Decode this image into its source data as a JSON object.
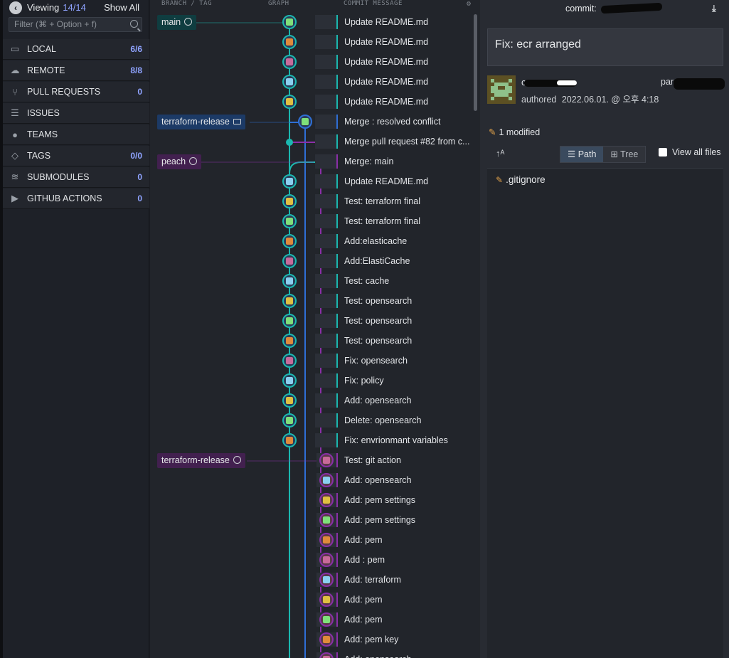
{
  "sidebar": {
    "viewing_label": "Viewing",
    "viewing_count": "14/14",
    "show_all": "Show All",
    "filter_placeholder": "Filter (⌘ + Option + f)",
    "items": [
      {
        "label": "LOCAL",
        "count": "6/6",
        "icon": "laptop-icon"
      },
      {
        "label": "REMOTE",
        "count": "8/8",
        "icon": "cloud-icon"
      },
      {
        "label": "PULL REQUESTS",
        "count": "0",
        "icon": "pull-request-icon"
      },
      {
        "label": "ISSUES",
        "count": "",
        "icon": "list-icon"
      },
      {
        "label": "TEAMS",
        "count": "",
        "icon": "team-icon"
      },
      {
        "label": "TAGS",
        "count": "0/0",
        "icon": "tag-icon"
      },
      {
        "label": "SUBMODULES",
        "count": "0",
        "icon": "layers-icon"
      },
      {
        "label": "GITHUB ACTIONS",
        "count": "0",
        "icon": "play-circle-icon"
      }
    ]
  },
  "graph": {
    "headers": {
      "branch": "BRANCH / TAG",
      "graph": "GRAPH",
      "message": "COMMIT MESSAGE"
    },
    "refs": {
      "main": "main",
      "terraform_release_local": "terraform-release",
      "peach": "peach",
      "terraform_release_remote": "terraform-release"
    },
    "commits": [
      "Update README.md",
      "Update README.md",
      "Update README.md",
      "Update README.md",
      "Update README.md",
      "Merge : resolved conflict",
      "Merge pull request #82 from c...",
      "Merge: main",
      "Update README.md",
      "Test: terraform final",
      "Test: terraform final",
      "Add:elasticache",
      "Add:ElastiCache",
      "Test: cache",
      "Test: opensearch",
      "Test: opensearch",
      "Test: opensearch",
      "Fix: opensearch",
      "Fix: policy",
      "Add: opensearch",
      "Delete: opensearch",
      "Fix: envrionmant variables",
      "Test: git action",
      "Add: opensearch",
      "Add: pem settings",
      "Add: pem settings",
      "Add: pem",
      "Add : pem",
      "Add: terraform",
      "Add: pem",
      "Add: pem",
      "Add: pem key",
      "Add: opensearch"
    ]
  },
  "detail": {
    "commit_label": "commit:",
    "summary": "Fix: ecr arranged",
    "author_name": "crows",
    "parent_label": "parent:",
    "authored_label": "authored",
    "authored_date": "2022.06.01. @ 오후 4:18",
    "modified_text": "1 modified",
    "path_label": "Path",
    "tree_label": "Tree",
    "view_all_label": "View all files",
    "files": [
      ".gitignore"
    ]
  },
  "colors": {
    "teal": "#1bb8b0",
    "blue": "#2f6fd6",
    "purple": "#8a2fa8",
    "accent_count": "#8fa3ff"
  }
}
